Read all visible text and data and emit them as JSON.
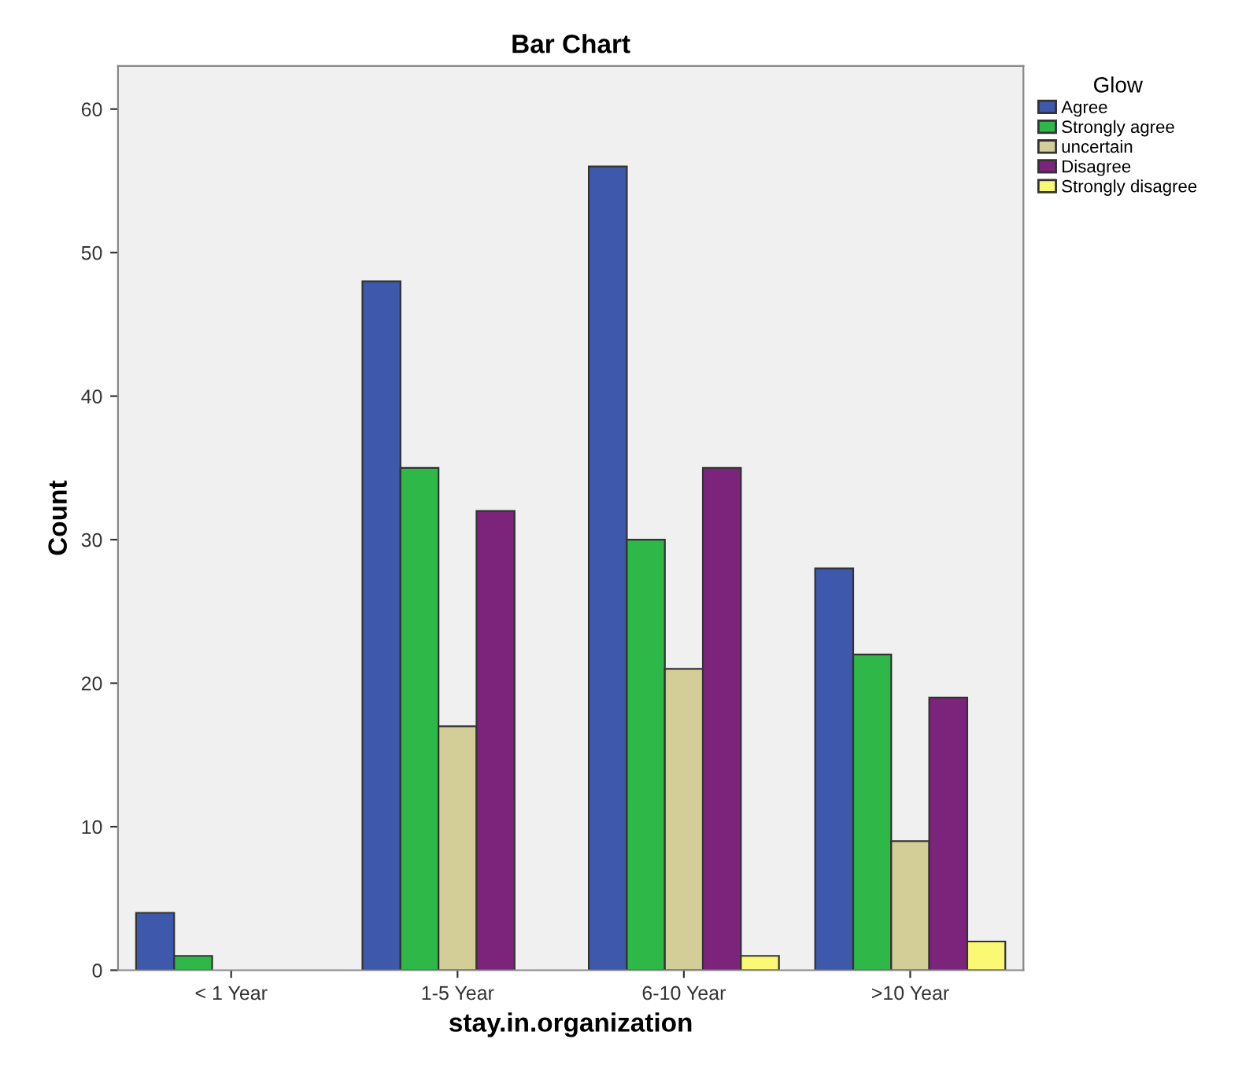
{
  "chart_data": {
    "type": "bar",
    "title": "Bar Chart",
    "xlabel": "stay.in.organization",
    "ylabel": "Count",
    "legend_title": "Glow",
    "categories": [
      "< 1 Year",
      "1-5 Year",
      "6-10 Year",
      ">10 Year"
    ],
    "series": [
      {
        "name": "Agree",
        "color": "#3e58ac",
        "values": [
          4,
          48,
          56,
          28
        ]
      },
      {
        "name": "Strongly agree",
        "color": "#2eb848",
        "values": [
          1,
          35,
          30,
          22
        ]
      },
      {
        "name": "uncertain",
        "color": "#d3ce97",
        "values": [
          0,
          17,
          21,
          9
        ]
      },
      {
        "name": "Disagree",
        "color": "#7c237c",
        "values": [
          0,
          32,
          35,
          19
        ]
      },
      {
        "name": "Strongly disagree",
        "color": "#fbf873",
        "values": [
          0,
          0,
          1,
          2
        ]
      }
    ],
    "ylim": [
      0,
      63
    ],
    "yticks": [
      0,
      10,
      20,
      30,
      40,
      50,
      60
    ],
    "grid": false,
    "legend": "top right"
  }
}
